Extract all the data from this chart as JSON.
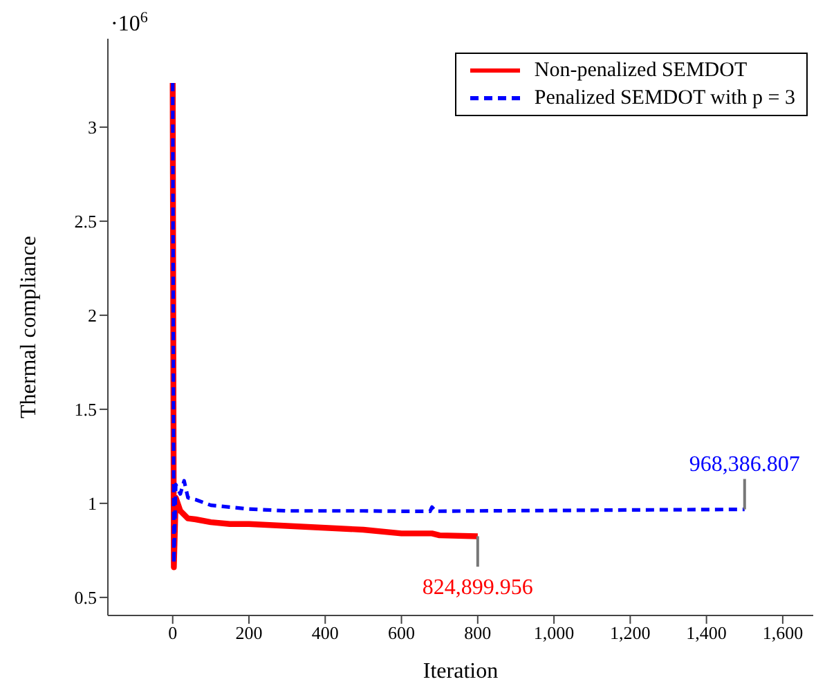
{
  "chart_data": {
    "type": "line",
    "xlabel": "Iteration",
    "ylabel": "Thermal compliance",
    "xlim": [
      -170,
      1680
    ],
    "xticks": [
      0,
      200,
      400,
      600,
      800,
      {
        "value": 1000,
        "label": "1,000"
      },
      {
        "value": 1200,
        "label": "1,200"
      },
      {
        "value": 1400,
        "label": "1,400"
      },
      {
        "value": 1600,
        "label": "1,600"
      }
    ],
    "ylim": [
      0.404,
      3.47
    ],
    "yticks": [
      0.5,
      1,
      1.5,
      2,
      2.5,
      3
    ],
    "grid": false,
    "legend": "top right",
    "marker": "none",
    "series": [
      {
        "name": "Non-penalized SEMDOT",
        "color": "#ff0000",
        "line_style": "solid",
        "x": [
          0,
          3,
          8,
          20,
          30,
          40,
          60,
          100,
          150,
          200,
          300,
          400,
          500,
          600,
          680,
          700,
          800
        ],
        "values": [
          3.235,
          0.66,
          1.03,
          0.96,
          0.94,
          0.92,
          0.915,
          0.9,
          0.89,
          0.89,
          0.88,
          0.87,
          0.86,
          0.84,
          0.84,
          0.83,
          0.825
        ]
      },
      {
        "name": "Penalized SEMDOT with p = 3",
        "color": "#0000ff",
        "line_style": "dashed",
        "x": [
          0,
          3,
          8,
          20,
          30,
          40,
          60,
          100,
          150,
          200,
          300,
          500,
          600,
          675,
          680,
          690,
          800,
          1000,
          1200,
          1500
        ],
        "values": [
          3.235,
          0.68,
          1.1,
          1.05,
          1.12,
          1.03,
          1.02,
          0.99,
          0.98,
          0.97,
          0.96,
          0.96,
          0.958,
          0.958,
          0.98,
          0.958,
          0.96,
          0.962,
          0.965,
          0.968
        ]
      }
    ],
    "annotations": [
      "·10$^{6}$",
      {
        "text": "824,899.956",
        "x": 800,
        "y": 0.825
      },
      {
        "text": "968,386.807",
        "x": 1500,
        "y": 0.968
      }
    ]
  }
}
